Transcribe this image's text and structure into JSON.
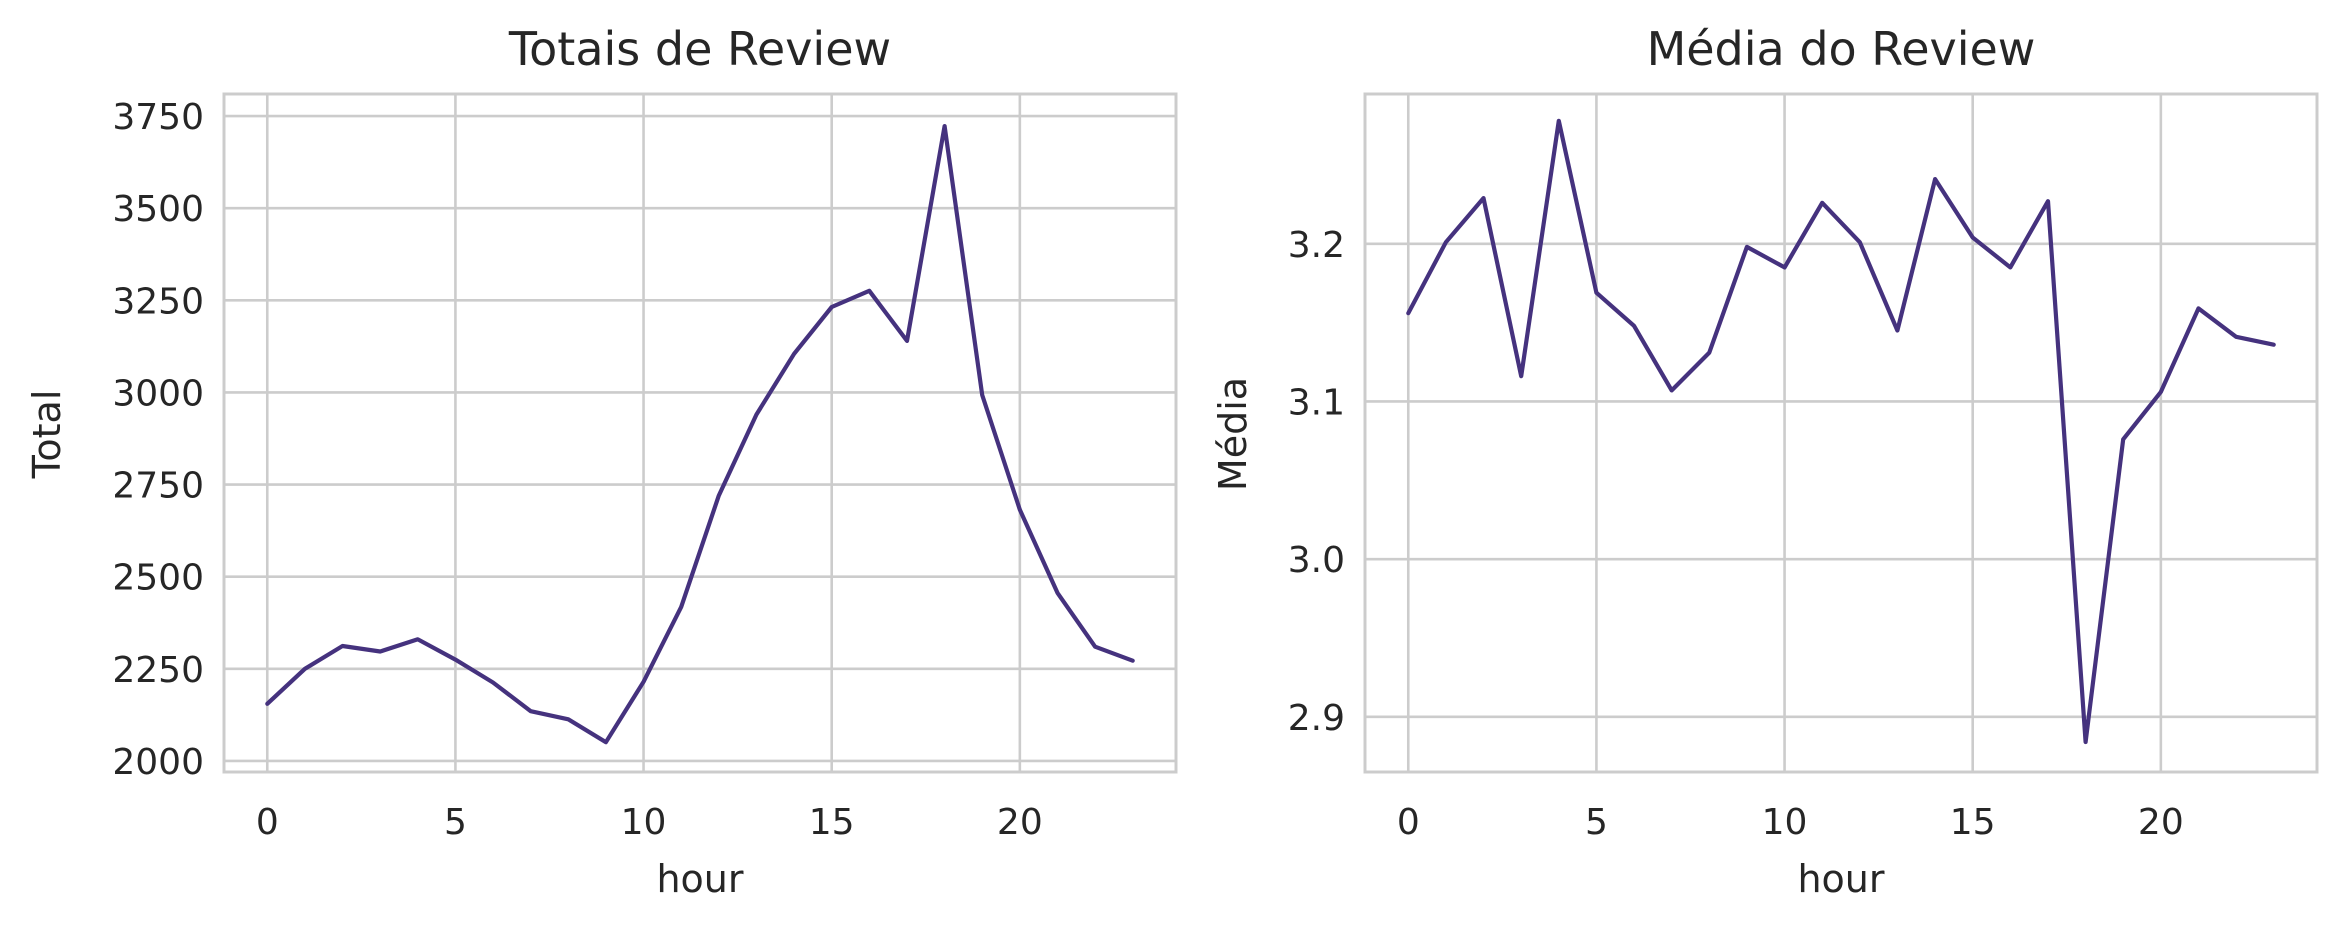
{
  "colors": {
    "line": "#45327e",
    "grid": "#cccccc",
    "text": "#262626",
    "background": "#ffffff"
  },
  "chart_data": [
    {
      "type": "line",
      "title": "Totais de Review",
      "xlabel": "hour",
      "ylabel": "Total",
      "xlim": [
        -1.15,
        24.15
      ],
      "ylim": [
        1970,
        3810
      ],
      "xticks": [
        0,
        5,
        10,
        15,
        20
      ],
      "yticks": [
        2000,
        2250,
        2500,
        2750,
        3000,
        3250,
        3500,
        3750
      ],
      "ytick_labels": [
        "2000",
        "2250",
        "2500",
        "2750",
        "3000",
        "3250",
        "3500",
        "3750"
      ],
      "grid": true,
      "x": [
        0,
        1,
        2,
        3,
        4,
        5,
        6,
        7,
        8,
        9,
        10,
        11,
        12,
        13,
        14,
        15,
        16,
        17,
        18,
        19,
        20,
        21,
        22,
        23
      ],
      "series": [
        {
          "values": [
            2155,
            2250,
            2312,
            2297,
            2330,
            2275,
            2213,
            2135,
            2113,
            2051,
            2215,
            2418,
            2720,
            2940,
            3105,
            3232,
            3276,
            3140,
            3723,
            2993,
            2682,
            2456,
            2310,
            2272
          ]
        }
      ]
    },
    {
      "type": "line",
      "title": "Média do Review",
      "xlabel": "hour",
      "ylabel": "Média",
      "xlim": [
        -1.15,
        24.15
      ],
      "ylim": [
        2.865,
        3.295
      ],
      "xticks": [
        0,
        5,
        10,
        15,
        20
      ],
      "yticks": [
        2.9,
        3.0,
        3.1,
        3.2
      ],
      "ytick_labels": [
        "2.9",
        "3.0",
        "3.1",
        "3.2"
      ],
      "grid": true,
      "x": [
        0,
        1,
        2,
        3,
        4,
        5,
        6,
        7,
        8,
        9,
        10,
        11,
        12,
        13,
        14,
        15,
        16,
        17,
        18,
        19,
        20,
        21,
        22,
        23
      ],
      "series": [
        {
          "values": [
            3.156,
            3.201,
            3.229,
            3.116,
            3.278,
            3.169,
            3.148,
            3.107,
            3.131,
            3.198,
            3.185,
            3.226,
            3.201,
            3.145,
            3.241,
            3.204,
            3.185,
            3.227,
            2.884,
            3.076,
            3.106,
            3.159,
            3.141,
            3.136
          ]
        }
      ]
    }
  ]
}
